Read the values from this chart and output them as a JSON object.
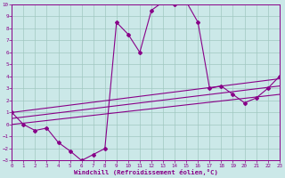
{
  "xlabel": "Windchill (Refroidissement éolien,°C)",
  "background_color": "#cbe8e8",
  "grid_color": "#a0c8c0",
  "line_color": "#880088",
  "xlim": [
    0,
    23
  ],
  "ylim": [
    -3,
    10
  ],
  "xticks": [
    0,
    1,
    2,
    3,
    4,
    5,
    6,
    7,
    8,
    9,
    10,
    11,
    12,
    13,
    14,
    15,
    16,
    17,
    18,
    19,
    20,
    21,
    22,
    23
  ],
  "yticks": [
    -3,
    -2,
    -1,
    0,
    1,
    2,
    3,
    4,
    5,
    6,
    7,
    8,
    9,
    10
  ],
  "main_x": [
    0,
    1,
    2,
    3,
    4,
    5,
    6,
    7,
    8,
    9,
    10,
    11,
    12,
    13,
    14,
    15,
    16,
    17,
    18,
    19,
    20,
    21,
    22,
    23
  ],
  "main_y": [
    1.0,
    0.0,
    -0.5,
    -0.3,
    -1.5,
    -2.2,
    -3.0,
    -2.5,
    -2.0,
    8.5,
    7.5,
    6.0,
    9.5,
    10.2,
    10.0,
    10.2,
    8.5,
    3.0,
    3.2,
    2.5,
    1.8,
    2.2,
    3.0,
    4.0
  ],
  "line2_x": [
    0,
    23
  ],
  "line2_y": [
    1.0,
    3.8
  ],
  "line3_x": [
    0,
    23
  ],
  "line3_y": [
    0.5,
    3.2
  ],
  "line4_x": [
    0,
    23
  ],
  "line4_y": [
    0.0,
    2.5
  ]
}
